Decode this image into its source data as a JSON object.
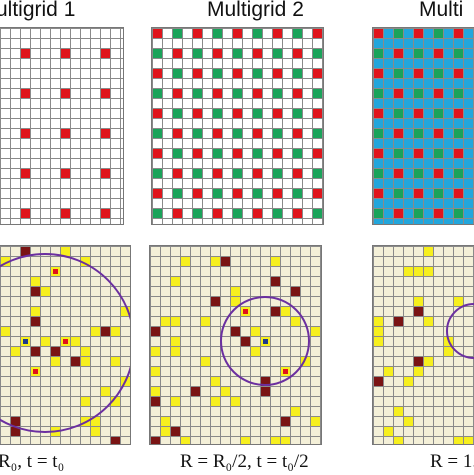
{
  "titles": {
    "multigrid_1": "ultigrid 1",
    "multigrid_2": "Multigrid 2",
    "multigrid_3": "Multi"
  },
  "captions": {
    "left": "R₀,  t = t₀",
    "middle": "R = R₀/2,    t = t₀/2",
    "right": "R = 1."
  },
  "colors": {
    "red": "#e0141b",
    "green": "#1aa35a",
    "blue": "#22a6dc",
    "dark_red": "#7a1414",
    "yellow": "#f7f01e",
    "navy": "#1f3a8a",
    "purple": "#6b2fa0",
    "cream": "#f4f0d8"
  }
}
